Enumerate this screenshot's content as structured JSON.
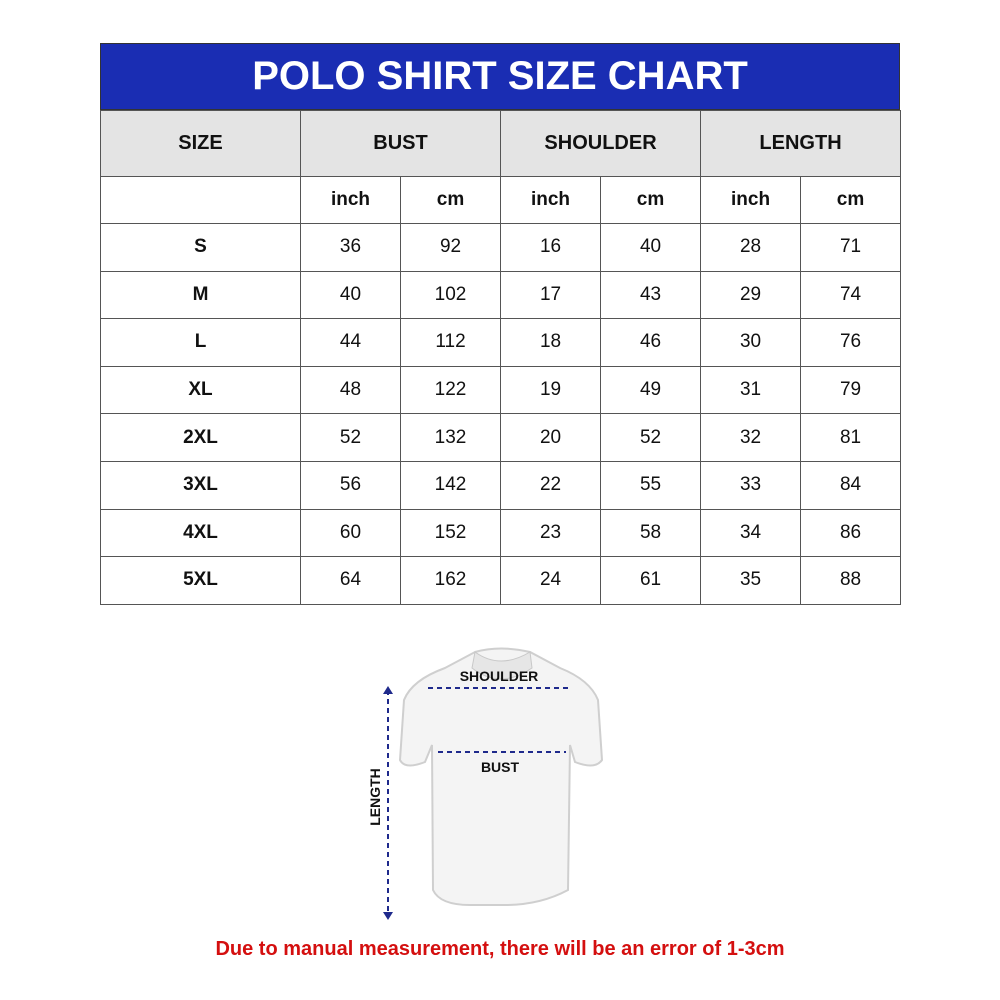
{
  "title": "POLO SHIRT SIZE CHART",
  "table": {
    "groups": [
      "SIZE",
      "BUST",
      "SHOULDER",
      "LENGTH"
    ],
    "units": [
      "inch",
      "cm",
      "inch",
      "cm",
      "inch",
      "cm"
    ],
    "rows": [
      [
        "S",
        36,
        92,
        16,
        40,
        28,
        71
      ],
      [
        "M",
        40,
        102,
        17,
        43,
        29,
        74
      ],
      [
        "L",
        44,
        112,
        18,
        46,
        30,
        76
      ],
      [
        "XL",
        48,
        122,
        19,
        49,
        31,
        79
      ],
      [
        "2XL",
        52,
        132,
        20,
        52,
        32,
        81
      ],
      [
        "3XL",
        56,
        142,
        22,
        55,
        33,
        84
      ],
      [
        "4XL",
        60,
        152,
        23,
        58,
        34,
        86
      ],
      [
        "5XL",
        64,
        162,
        24,
        61,
        35,
        88
      ]
    ]
  },
  "diagram": {
    "shoulder": "SHOULDER",
    "bust": "BUST",
    "length": "LENGTH"
  },
  "note": "Due to manual measurement, there will be an error of 1-3cm"
}
